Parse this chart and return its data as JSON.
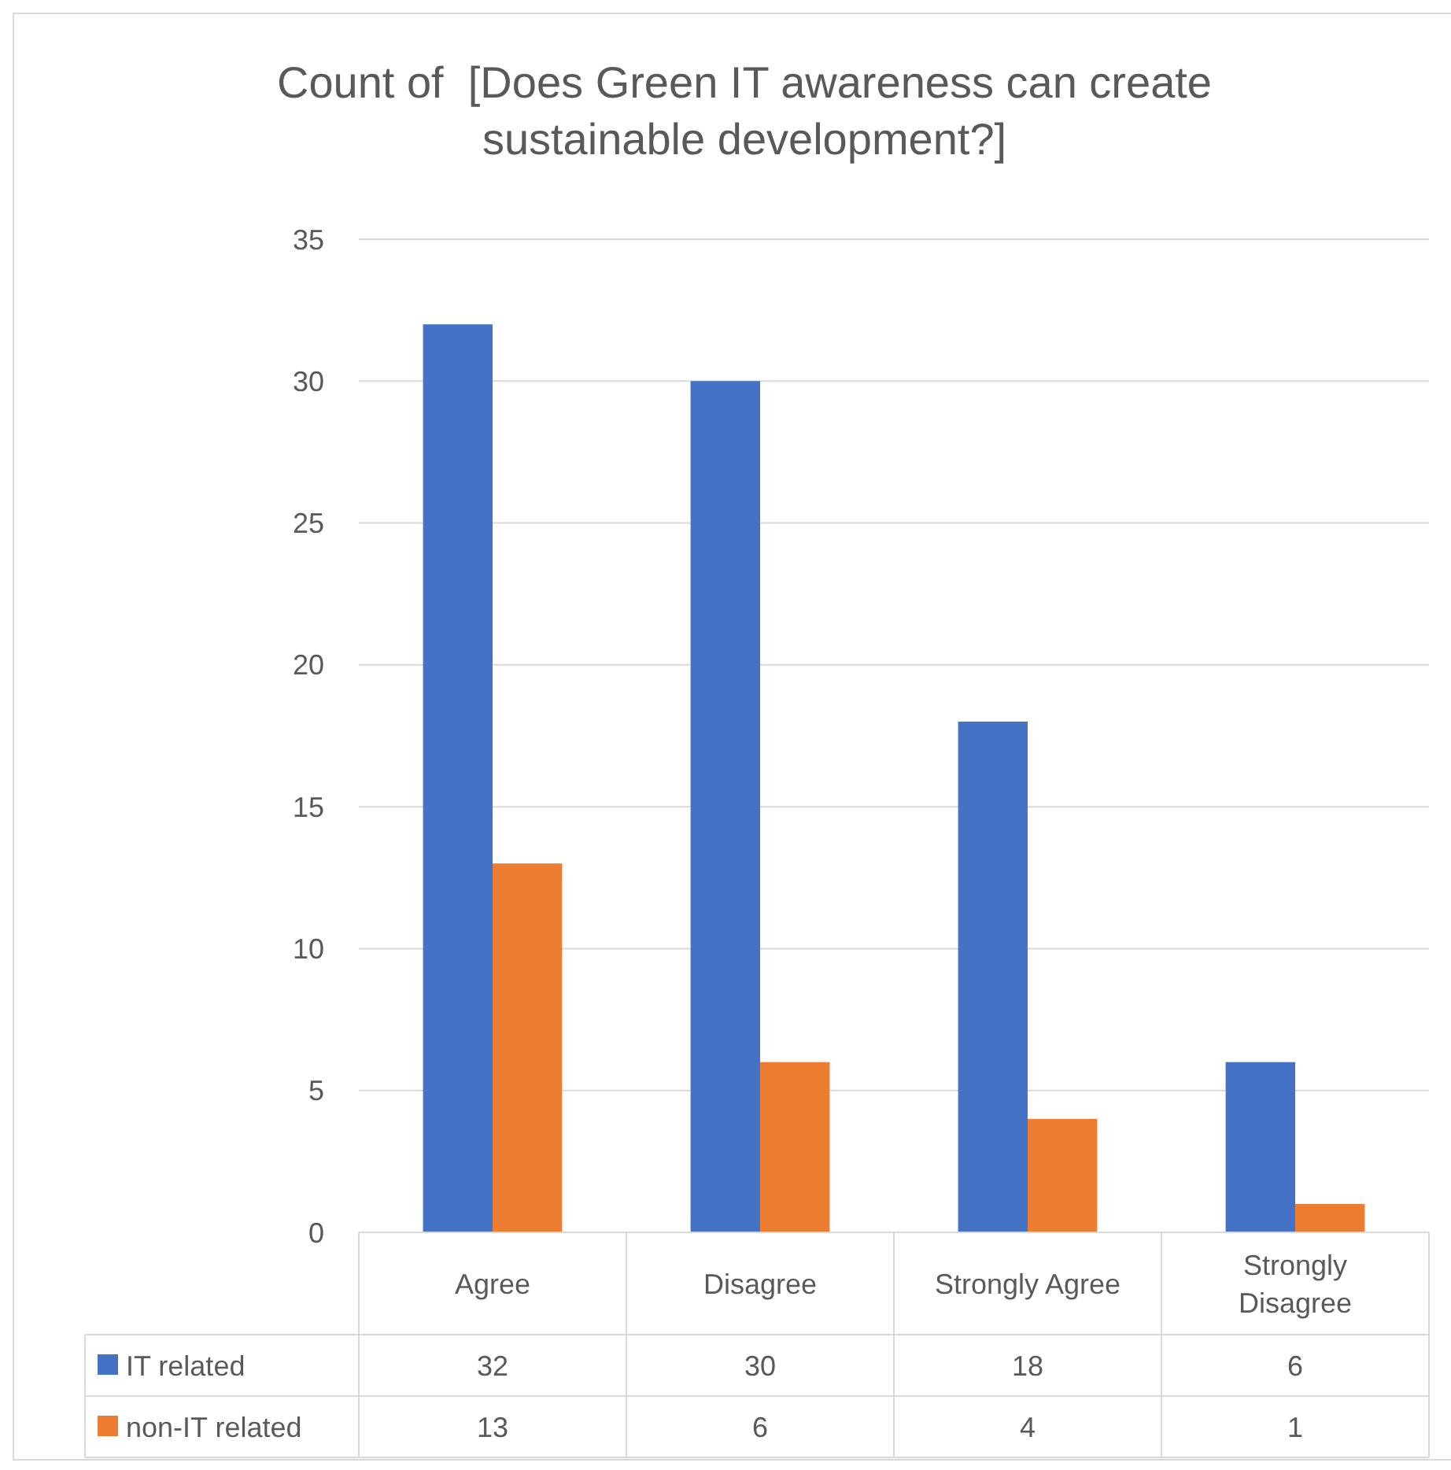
{
  "chart_data": {
    "type": "bar",
    "title": "Count of  [Does Green IT awareness can create sustainable development?]",
    "categories": [
      "Agree",
      "Disagree",
      "Strongly Agree",
      "Strongly Disagree"
    ],
    "series": [
      {
        "name": "IT related",
        "color": "#4472c4",
        "values": [
          32,
          30,
          18,
          6
        ]
      },
      {
        "name": "non-IT related",
        "color": "#ed7d31",
        "values": [
          13,
          6,
          4,
          1
        ]
      }
    ],
    "ylim": [
      0,
      35
    ],
    "yticks": [
      0,
      5,
      10,
      15,
      20,
      25,
      30,
      35
    ],
    "grid": "y",
    "legend": "bottom",
    "data_labels": true
  }
}
